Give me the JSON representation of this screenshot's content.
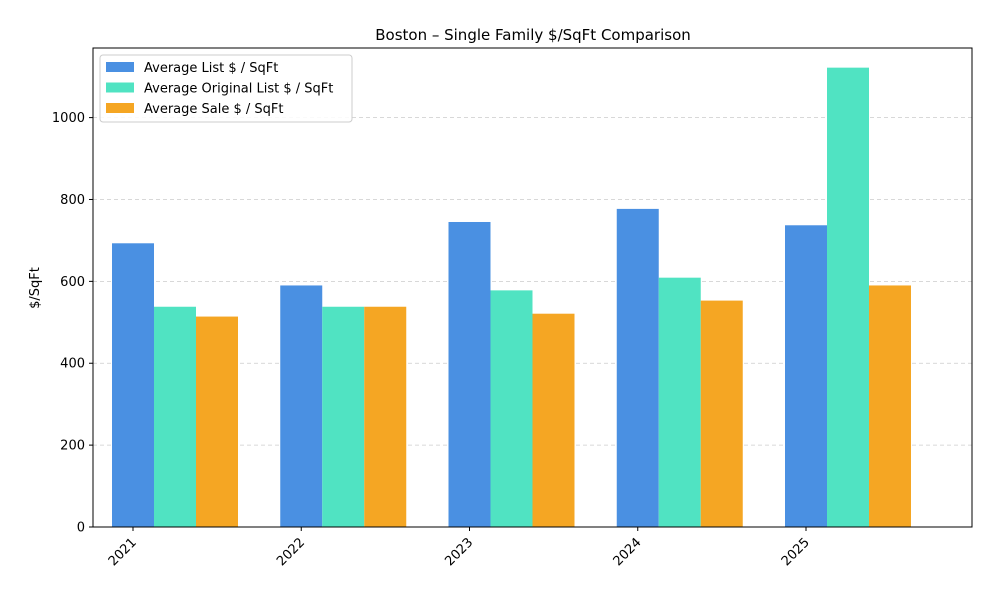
{
  "chart_data": {
    "type": "bar",
    "title": "Boston – Single Family $/SqFt Comparison",
    "xlabel": "",
    "ylabel": "$/SqFt",
    "categories": [
      "2021",
      "2022",
      "2023",
      "2024",
      "2025"
    ],
    "series": [
      {
        "name": "Average List $ / SqFt",
        "color": "#4a90e2",
        "values": [
          693,
          590,
          745,
          777,
          737
        ]
      },
      {
        "name": "Average Original List $ / SqFt",
        "color": "#50e3c2",
        "values": [
          538,
          538,
          578,
          609,
          1122
        ]
      },
      {
        "name": "Average Sale $ / SqFt",
        "color": "#f5a623",
        "values": [
          514,
          538,
          521,
          553,
          590
        ]
      }
    ],
    "ylim": [
      0,
      1170
    ],
    "yticks": [
      0,
      200,
      400,
      600,
      800,
      1000
    ],
    "grid": "y-dashed",
    "legend_position": "top-left"
  }
}
